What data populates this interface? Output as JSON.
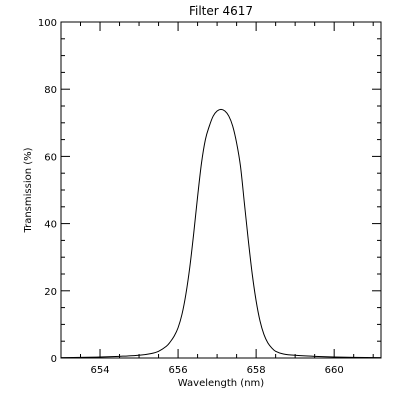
{
  "chart_data": {
    "type": "line",
    "title": "Filter 4617",
    "xlabel": "Wavelength (nm)",
    "ylabel": "Transmission (%)",
    "xlim": [
      653,
      661.2
    ],
    "ylim": [
      0,
      100
    ],
    "xticks": [
      654,
      656,
      658,
      660
    ],
    "xtick_labels": [
      "654",
      "656",
      "658",
      "660"
    ],
    "yticks": [
      0,
      20,
      40,
      60,
      80,
      100
    ],
    "ytick_labels": [
      "0",
      "20",
      "40",
      "60",
      "80",
      "100"
    ],
    "x_minor_step": 0.5,
    "y_minor_step": 5,
    "grid": false,
    "series": [
      {
        "x": [
          653.0,
          653.5,
          654.0,
          654.5,
          655.0,
          655.3,
          655.5,
          655.7,
          655.8,
          655.9,
          656.0,
          656.1,
          656.2,
          656.3,
          656.4,
          656.5,
          656.6,
          656.7,
          656.8,
          656.9,
          657.0,
          657.1,
          657.2,
          657.3,
          657.4,
          657.5,
          657.6,
          657.7,
          657.8,
          657.9,
          658.0,
          658.1,
          658.2,
          658.3,
          658.4,
          658.5,
          658.7,
          659.0,
          659.5,
          660.0,
          660.5,
          661.2
        ],
        "y": [
          0.1,
          0.2,
          0.3,
          0.5,
          0.8,
          1.3,
          2.0,
          3.5,
          4.8,
          6.5,
          9.0,
          13.0,
          19.0,
          27.0,
          37.0,
          48.0,
          58.0,
          65.0,
          69.0,
          72.0,
          73.5,
          74.0,
          73.5,
          72.0,
          69.0,
          64.0,
          57.0,
          46.0,
          35.0,
          25.0,
          17.0,
          11.0,
          7.0,
          4.5,
          3.0,
          2.0,
          1.2,
          0.8,
          0.5,
          0.3,
          0.2,
          0.1
        ]
      }
    ]
  }
}
